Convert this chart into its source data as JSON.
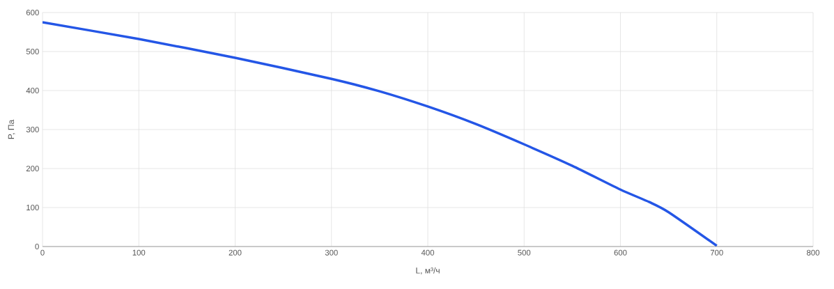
{
  "chart_data": {
    "type": "line",
    "xlabel": "L, м³/ч",
    "ylabel": "P, Па",
    "x": [
      0,
      100,
      200,
      300,
      350,
      400,
      450,
      500,
      550,
      600,
      630,
      650,
      700
    ],
    "series": [
      {
        "color": "#2456e6",
        "values": [
          575,
          532,
          484,
          430,
          398,
          359,
          314,
          262,
          207,
          146,
          114,
          88,
          2
        ]
      }
    ],
    "xlim": [
      0,
      800
    ],
    "ylim": [
      0,
      600
    ],
    "xticks": [
      0,
      100,
      200,
      300,
      400,
      500,
      600,
      700,
      800
    ],
    "yticks": [
      0,
      100,
      200,
      300,
      400,
      500,
      600
    ],
    "grid": true,
    "marker": "none",
    "line_style": "solid"
  }
}
